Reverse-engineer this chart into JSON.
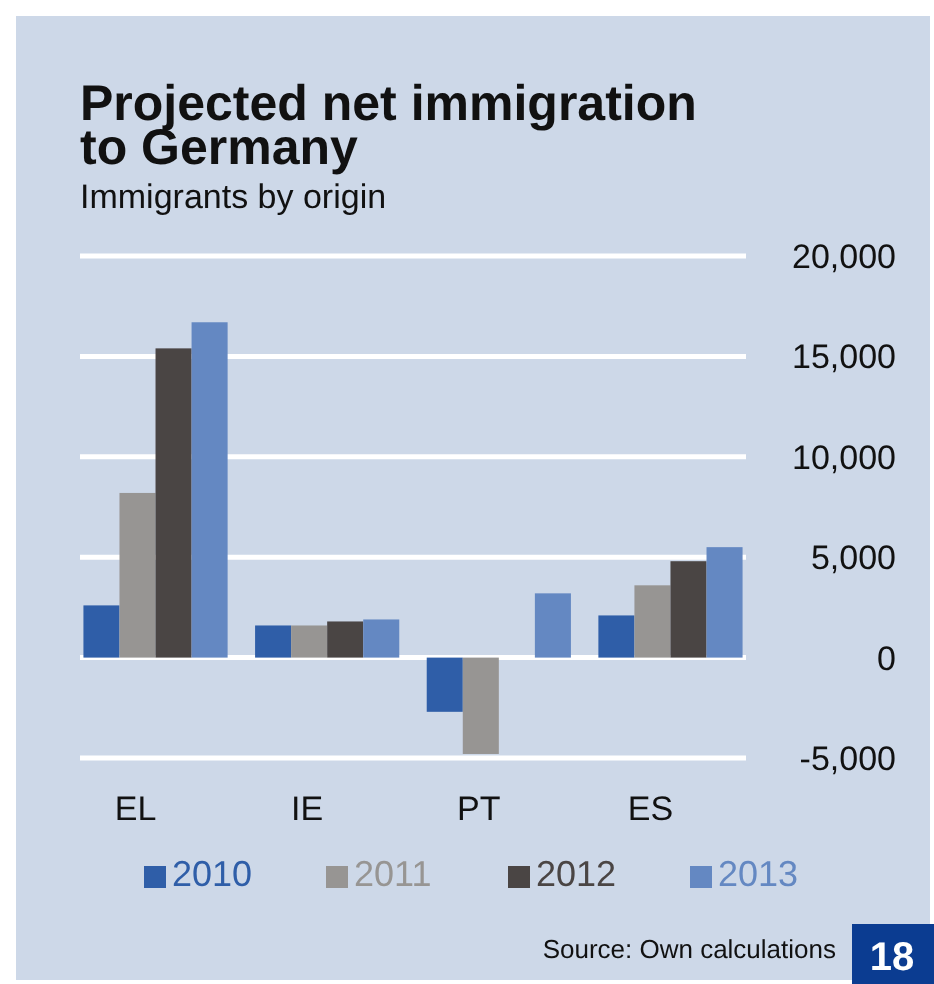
{
  "chart_data": {
    "type": "bar",
    "title": "Projected net immigration to Germany",
    "subtitle": "Immigrants by origin",
    "categories": [
      "EL",
      "IE",
      "PT",
      "ES"
    ],
    "series": [
      {
        "name": "2010",
        "color": "#2f5ea8",
        "values": [
          2600,
          1600,
          -2700,
          2100
        ]
      },
      {
        "name": "2011",
        "color": "#979593",
        "values": [
          8200,
          1600,
          -4800,
          3600
        ]
      },
      {
        "name": "2012",
        "color": "#4a4544",
        "values": [
          15400,
          1800,
          null,
          4800
        ]
      },
      {
        "name": "2013",
        "color": "#6488c2",
        "values": [
          16700,
          1900,
          3200,
          5500
        ]
      }
    ],
    "ylim": [
      -5000,
      20000
    ],
    "yticks": [
      {
        "value": -5000,
        "label": "-5,000"
      },
      0,
      {
        "value": 5000,
        "label": "5,000"
      },
      {
        "value": 10000,
        "label": "10,000"
      },
      {
        "value": 15000,
        "label": "15,000"
      },
      {
        "value": 20000,
        "label": "20,000"
      }
    ],
    "grid": "y",
    "legend": "bottom",
    "annotations": [
      "Source: Own calculations",
      "18"
    ]
  }
}
